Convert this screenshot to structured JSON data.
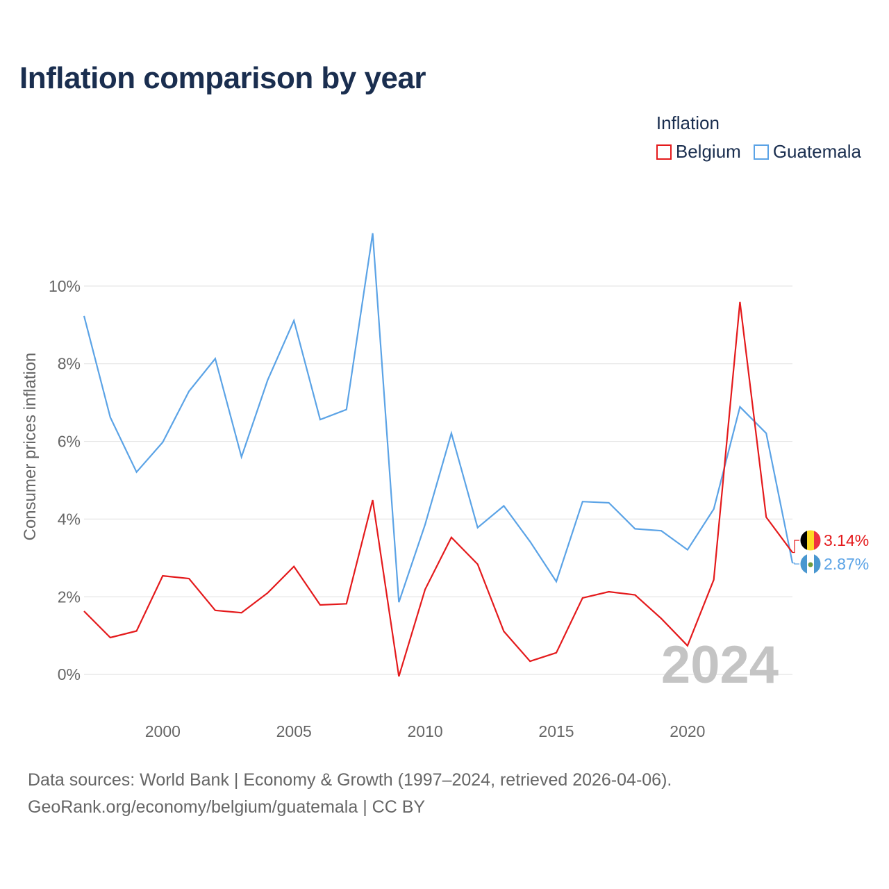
{
  "title": "Inflation comparison by year",
  "legend": {
    "title": "Inflation",
    "items": [
      {
        "label": "Belgium",
        "color": "#e41a1c"
      },
      {
        "label": "Guatemala",
        "color": "#5ba3e6"
      }
    ]
  },
  "chart_data": {
    "type": "line",
    "title": "Inflation comparison by year",
    "xlabel": "",
    "ylabel": "Consumer prices inflation",
    "x": [
      1997,
      1998,
      1999,
      2000,
      2001,
      2002,
      2003,
      2004,
      2005,
      2006,
      2007,
      2008,
      2009,
      2010,
      2011,
      2012,
      2013,
      2014,
      2015,
      2016,
      2017,
      2018,
      2019,
      2020,
      2021,
      2022,
      2023,
      2024
    ],
    "xlim": [
      1997,
      2024
    ],
    "ylim": [
      -1.5,
      12
    ],
    "x_ticks": [
      2000,
      2005,
      2010,
      2015,
      2020
    ],
    "y_ticks": [
      0,
      2,
      4,
      6,
      8,
      10
    ],
    "y_tick_labels": [
      "0%",
      "2%",
      "4%",
      "6%",
      "8%",
      "10%"
    ],
    "grid": true,
    "series": [
      {
        "name": "Belgium",
        "color": "#e41a1c",
        "values": [
          1.63,
          0.95,
          1.12,
          2.54,
          2.47,
          1.65,
          1.59,
          2.1,
          2.78,
          1.79,
          1.82,
          4.49,
          -0.05,
          2.19,
          3.53,
          2.84,
          1.11,
          0.34,
          0.56,
          1.97,
          2.13,
          2.05,
          1.44,
          0.74,
          2.44,
          9.59,
          4.05,
          3.14
        ],
        "end_label": "3.14%"
      },
      {
        "name": "Guatemala",
        "color": "#5ba3e6",
        "values": [
          9.23,
          6.62,
          5.21,
          5.98,
          7.29,
          8.13,
          5.6,
          7.58,
          9.11,
          6.56,
          6.82,
          11.36,
          1.86,
          3.86,
          6.21,
          3.78,
          4.34,
          3.42,
          2.39,
          4.45,
          4.42,
          3.75,
          3.7,
          3.21,
          4.26,
          6.89,
          6.21,
          2.87
        ],
        "end_label": "2.87%"
      }
    ],
    "watermark": "2024"
  },
  "footer": {
    "line1": "Data sources: World Bank | Economy & Growth (1997–2024, retrieved 2026-04-06).",
    "line2": "GeoRank.org/economy/belgium/guatemala | CC BY"
  }
}
